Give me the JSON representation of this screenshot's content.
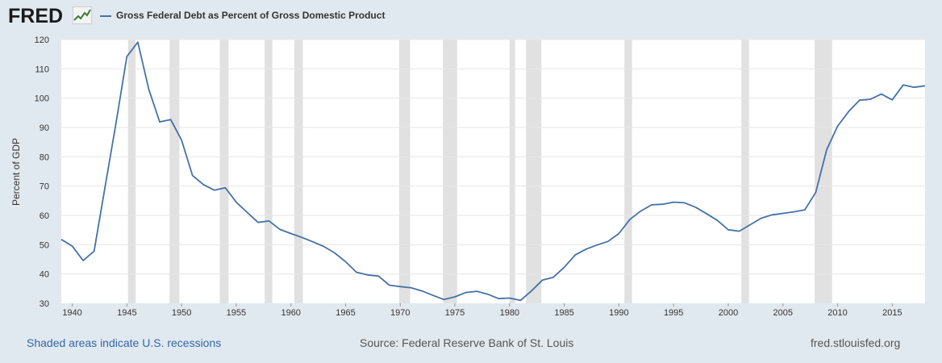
{
  "logo": {
    "text": "FRED"
  },
  "legend": {
    "label": "Gross Federal Debt as Percent of Gross Domestic Product",
    "color": "#4572a7"
  },
  "footer": {
    "recession_note": "Shaded areas indicate U.S. recessions",
    "source": "Source: Federal Reserve Bank of St. Louis",
    "site": "fred.stlouisfed.org"
  },
  "colors": {
    "background": "#e1e9f0",
    "plot_bg": "#ffffff",
    "line": "#4572a7",
    "recession": "#e1e1e1",
    "grid": "#e6e6e6"
  },
  "chart_data": {
    "type": "line",
    "ylabel": "Percent of GDP",
    "xlim": [
      1939,
      2018
    ],
    "ylim": [
      30,
      120
    ],
    "x_ticks": [
      "1940",
      "1945",
      "1950",
      "1955",
      "1960",
      "1965",
      "1970",
      "1975",
      "1980",
      "1985",
      "1990",
      "1995",
      "2000",
      "2005",
      "2010",
      "2015"
    ],
    "y_ticks": [
      "30",
      "40",
      "50",
      "60",
      "70",
      "80",
      "90",
      "100",
      "110",
      "120"
    ],
    "recessions": [
      [
        1945.1,
        1945.8
      ],
      [
        1948.9,
        1949.8
      ],
      [
        1953.5,
        1954.3
      ],
      [
        1957.6,
        1958.3
      ],
      [
        1960.3,
        1961.1
      ],
      [
        1969.9,
        1970.9
      ],
      [
        1973.9,
        1975.2
      ],
      [
        1980.0,
        1980.5
      ],
      [
        1981.5,
        1982.9
      ],
      [
        1990.5,
        1991.2
      ],
      [
        2001.2,
        2001.9
      ],
      [
        2007.9,
        2009.5
      ]
    ],
    "series": [
      {
        "x": [
          1939,
          1940,
          1941,
          1942,
          1943,
          1944,
          1945,
          1946,
          1947,
          1948,
          1949,
          1950,
          1951,
          1952,
          1953,
          1954,
          1955,
          1956,
          1957,
          1958,
          1959,
          1960,
          1961,
          1962,
          1963,
          1964,
          1965,
          1966,
          1967,
          1968,
          1969,
          1970,
          1971,
          1972,
          1973,
          1974,
          1975,
          1976,
          1977,
          1978,
          1979,
          1980,
          1981,
          1982,
          1983,
          1984,
          1985,
          1986,
          1987,
          1988,
          1989,
          1990,
          1991,
          1992,
          1993,
          1994,
          1995,
          1996,
          1997,
          1998,
          1999,
          2000,
          2001,
          2002,
          2003,
          2004,
          2005,
          2006,
          2007,
          2008,
          2009,
          2010,
          2011,
          2012,
          2013,
          2014,
          2015,
          2016,
          2017,
          2018
        ],
        "y": [
          51.8,
          49.5,
          44.6,
          47.8,
          69.6,
          91.4,
          114.2,
          119.1,
          103.0,
          91.9,
          92.7,
          85.7,
          73.6,
          70.5,
          68.6,
          69.4,
          64.5,
          61.0,
          57.6,
          58.1,
          55.2,
          53.8,
          52.5,
          51.0,
          49.4,
          47.2,
          44.2,
          40.6,
          39.7,
          39.3,
          36.2,
          35.7,
          35.3,
          34.2,
          32.7,
          31.3,
          32.2,
          33.7,
          34.1,
          33.1,
          31.6,
          31.8,
          31.0,
          34.2,
          37.9,
          38.9,
          42.3,
          46.5,
          48.5,
          49.9,
          51.1,
          53.8,
          58.6,
          61.5,
          63.6,
          63.8,
          64.5,
          64.3,
          62.8,
          60.6,
          58.3,
          55.1,
          54.6,
          56.8,
          59.0,
          60.2,
          60.7,
          61.2,
          61.9,
          67.8,
          82.4,
          90.4,
          95.4,
          99.3,
          99.6,
          101.4,
          99.4,
          104.5,
          103.7,
          104.2
        ]
      }
    ]
  }
}
